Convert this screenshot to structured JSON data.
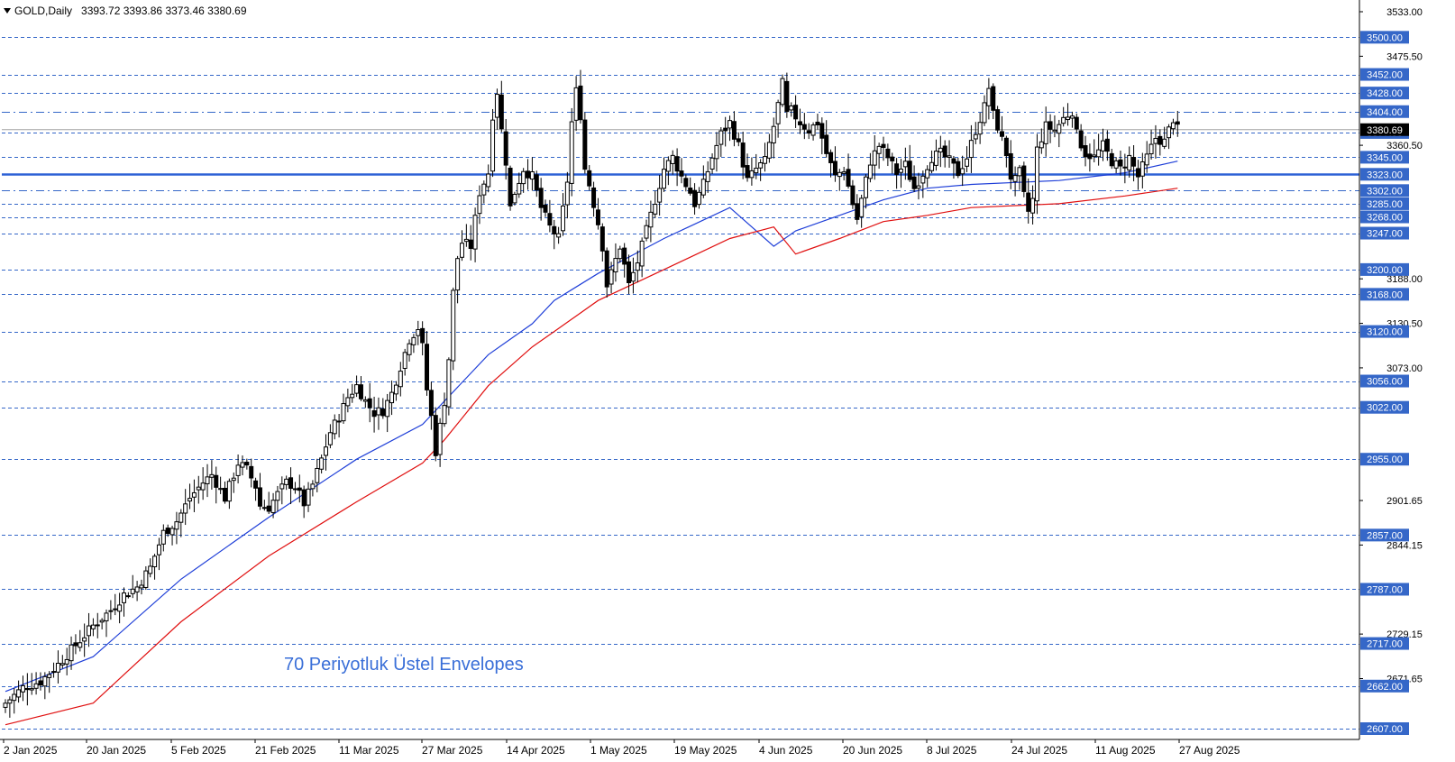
{
  "header": {
    "symbol": "GOLD,Daily",
    "values": "3393.72 3393.86 3373.46 3380.69"
  },
  "colors": {
    "bg": "#ffffff",
    "candle": "#000000",
    "blue_line": "#1f3fd8",
    "red_line": "#e01010",
    "level_box": "#3567c8",
    "level_text": "#ffffff",
    "grid_dash": "#3567c8",
    "support_line": "#2f62d6",
    "annotation": "#3a6fd8"
  },
  "chart_data": {
    "type": "candlestick",
    "title": "GOLD,Daily",
    "annotation": "70 Periyotluk Üstel Envelopes",
    "ylim": [
      2590,
      3535
    ],
    "x_ticks": [
      "2 Jan 2025",
      "20 Jan 2025",
      "5 Feb 2025",
      "21 Feb 2025",
      "11 Mar 2025",
      "27 Mar 2025",
      "14 Apr 2025",
      "1 May 2025",
      "19 May 2025",
      "4 Jun 2025",
      "20 Jun 2025",
      "8 Jul 2025",
      "24 Jul 2025",
      "11 Aug 2025",
      "27 Aug 2025"
    ],
    "y_ticks": [
      {
        "value": 3533.0,
        "label": "3533.00"
      },
      {
        "value": 3475.5,
        "label": "3475.50"
      },
      {
        "value": 3360.5,
        "label": "3360.50"
      },
      {
        "value": 3188.0,
        "label": "3188.00"
      },
      {
        "value": 3130.5,
        "label": "3130.50"
      },
      {
        "value": 3073.0,
        "label": "3073.00"
      },
      {
        "value": 2901.65,
        "label": "2901.65"
      },
      {
        "value": 2844.15,
        "label": "2844.15"
      },
      {
        "value": 2729.15,
        "label": "2729.15"
      },
      {
        "value": 2671.65,
        "label": "2671.65"
      }
    ],
    "levels": [
      {
        "value": 3500.0,
        "label": "3500.00",
        "style": "dashed"
      },
      {
        "value": 3452.0,
        "label": "3452.00",
        "style": "dashed"
      },
      {
        "value": 3428.0,
        "label": "3428.00",
        "style": "dashed"
      },
      {
        "value": 3404.0,
        "label": "3404.00",
        "style": "dashdot"
      },
      {
        "value": 3377.0,
        "label": "3377.00",
        "style": "dashed"
      },
      {
        "value": 3345.0,
        "label": "3345.00",
        "style": "dashed"
      },
      {
        "value": 3323.0,
        "label": "3323.00",
        "style": "solid"
      },
      {
        "value": 3302.0,
        "label": "3302.00",
        "style": "dashdot"
      },
      {
        "value": 3285.0,
        "label": "3285.00",
        "style": "dashed"
      },
      {
        "value": 3268.0,
        "label": "3268.00",
        "style": "dashed"
      },
      {
        "value": 3247.0,
        "label": "3247.00",
        "style": "dashed"
      },
      {
        "value": 3200.0,
        "label": "3200.00",
        "style": "dashed"
      },
      {
        "value": 3168.0,
        "label": "3168.00",
        "style": "dashed"
      },
      {
        "value": 3120.0,
        "label": "3120.00",
        "style": "dashed"
      },
      {
        "value": 3056.0,
        "label": "3056.00",
        "style": "dashed"
      },
      {
        "value": 3022.0,
        "label": "3022.00",
        "style": "dashed"
      },
      {
        "value": 2955.0,
        "label": "2955.00",
        "style": "dashed"
      },
      {
        "value": 2857.0,
        "label": "2857.00",
        "style": "dashed"
      },
      {
        "value": 2787.0,
        "label": "2787.00",
        "style": "dashed"
      },
      {
        "value": 2717.0,
        "label": "2717.00",
        "style": "dashed"
      },
      {
        "value": 2662.0,
        "label": "2662.00",
        "style": "dashed"
      },
      {
        "value": 2607.0,
        "label": "2607.00",
        "style": "dashed"
      }
    ],
    "current_price": 3380.69,
    "close_path": [
      [
        0,
        2640
      ],
      [
        4,
        2660
      ],
      [
        8,
        2668
      ],
      [
        12,
        2690
      ],
      [
        16,
        2715
      ],
      [
        20,
        2740
      ],
      [
        24,
        2760
      ],
      [
        27,
        2780
      ],
      [
        30,
        2790
      ],
      [
        33,
        2815
      ],
      [
        36,
        2860
      ],
      [
        39,
        2875
      ],
      [
        42,
        2905
      ],
      [
        45,
        2925
      ],
      [
        47,
        2935
      ],
      [
        50,
        2905
      ],
      [
        53,
        2950
      ],
      [
        55,
        2942
      ],
      [
        57,
        2920
      ],
      [
        58,
        2895
      ],
      [
        60,
        2893
      ],
      [
        62,
        2910
      ],
      [
        64,
        2925
      ],
      [
        66,
        2920
      ],
      [
        68,
        2898
      ],
      [
        70,
        2922
      ],
      [
        72,
        2955
      ],
      [
        74,
        2990
      ],
      [
        76,
        3010
      ],
      [
        78,
        3035
      ],
      [
        80,
        3050
      ],
      [
        82,
        3030
      ],
      [
        84,
        3015
      ],
      [
        86,
        3018
      ],
      [
        88,
        3040
      ],
      [
        90,
        3075
      ],
      [
        92,
        3110
      ],
      [
        94,
        3125
      ],
      [
        95,
        3100
      ],
      [
        96,
        3045
      ],
      [
        97,
        3010
      ],
      [
        98,
        2965
      ],
      [
        100,
        3030
      ],
      [
        101,
        3085
      ],
      [
        102,
        3170
      ],
      [
        103,
        3215
      ],
      [
        104,
        3235
      ],
      [
        106,
        3230
      ],
      [
        108,
        3300
      ],
      [
        110,
        3325
      ],
      [
        111,
        3400
      ],
      [
        112,
        3430
      ],
      [
        113,
        3380
      ],
      [
        114,
        3340
      ],
      [
        115,
        3280
      ],
      [
        116,
        3300
      ],
      [
        118,
        3330
      ],
      [
        120,
        3320
      ],
      [
        122,
        3280
      ],
      [
        124,
        3255
      ],
      [
        126,
        3240
      ],
      [
        128,
        3315
      ],
      [
        129,
        3390
      ],
      [
        130,
        3430
      ],
      [
        131,
        3400
      ],
      [
        132,
        3330
      ],
      [
        133,
        3310
      ],
      [
        135,
        3260
      ],
      [
        136,
        3230
      ],
      [
        137,
        3180
      ],
      [
        138,
        3195
      ],
      [
        140,
        3230
      ],
      [
        142,
        3180
      ],
      [
        144,
        3210
      ],
      [
        146,
        3250
      ],
      [
        148,
        3290
      ],
      [
        150,
        3330
      ],
      [
        152,
        3345
      ],
      [
        154,
        3320
      ],
      [
        156,
        3300
      ],
      [
        157,
        3285
      ],
      [
        159,
        3310
      ],
      [
        161,
        3345
      ],
      [
        163,
        3375
      ],
      [
        165,
        3390
      ],
      [
        167,
        3360
      ],
      [
        169,
        3315
      ],
      [
        171,
        3330
      ],
      [
        173,
        3340
      ],
      [
        175,
        3385
      ],
      [
        177,
        3440
      ],
      [
        178,
        3400
      ],
      [
        179,
        3405
      ],
      [
        181,
        3390
      ],
      [
        183,
        3380
      ],
      [
        185,
        3390
      ],
      [
        187,
        3350
      ],
      [
        189,
        3320
      ],
      [
        191,
        3330
      ],
      [
        193,
        3285
      ],
      [
        194,
        3265
      ],
      [
        195,
        3290
      ],
      [
        197,
        3340
      ],
      [
        199,
        3360
      ],
      [
        201,
        3345
      ],
      [
        203,
        3325
      ],
      [
        205,
        3335
      ],
      [
        207,
        3305
      ],
      [
        209,
        3325
      ],
      [
        211,
        3345
      ],
      [
        213,
        3350
      ],
      [
        215,
        3340
      ],
      [
        217,
        3325
      ],
      [
        219,
        3345
      ],
      [
        221,
        3380
      ],
      [
        223,
        3410
      ],
      [
        224,
        3435
      ],
      [
        225,
        3400
      ],
      [
        226,
        3385
      ],
      [
        228,
        3350
      ],
      [
        229,
        3320
      ],
      [
        230,
        3315
      ],
      [
        231,
        3325
      ],
      [
        232,
        3295
      ],
      [
        233,
        3275
      ],
      [
        234,
        3290
      ],
      [
        235,
        3355
      ],
      [
        237,
        3385
      ],
      [
        239,
        3380
      ],
      [
        241,
        3395
      ],
      [
        243,
        3405
      ],
      [
        244,
        3375
      ],
      [
        246,
        3350
      ],
      [
        248,
        3345
      ],
      [
        250,
        3360
      ],
      [
        252,
        3340
      ],
      [
        254,
        3330
      ],
      [
        256,
        3345
      ],
      [
        258,
        3320
      ],
      [
        260,
        3345
      ],
      [
        262,
        3370
      ],
      [
        264,
        3365
      ],
      [
        266,
        3395
      ],
      [
        267,
        3381
      ]
    ],
    "series": [
      {
        "name": "upper",
        "color": "blue",
        "points": [
          [
            0,
            2655
          ],
          [
            20,
            2700
          ],
          [
            40,
            2800
          ],
          [
            60,
            2880
          ],
          [
            80,
            2955
          ],
          [
            95,
            3000
          ],
          [
            100,
            3030
          ],
          [
            110,
            3090
          ],
          [
            120,
            3130
          ],
          [
            125,
            3160
          ],
          [
            135,
            3195
          ],
          [
            150,
            3240
          ],
          [
            165,
            3280
          ],
          [
            175,
            3230
          ],
          [
            180,
            3250
          ],
          [
            190,
            3270
          ],
          [
            200,
            3290
          ],
          [
            210,
            3305
          ],
          [
            220,
            3310
          ],
          [
            240,
            3315
          ],
          [
            255,
            3325
          ],
          [
            267,
            3340
          ]
        ]
      },
      {
        "name": "lower",
        "color": "red",
        "points": [
          [
            0,
            2612
          ],
          [
            20,
            2640
          ],
          [
            40,
            2745
          ],
          [
            60,
            2830
          ],
          [
            80,
            2900
          ],
          [
            95,
            2950
          ],
          [
            100,
            2980
          ],
          [
            110,
            3050
          ],
          [
            120,
            3100
          ],
          [
            125,
            3120
          ],
          [
            135,
            3160
          ],
          [
            150,
            3200
          ],
          [
            165,
            3240
          ],
          [
            175,
            3255
          ],
          [
            180,
            3220
          ],
          [
            190,
            3240
          ],
          [
            200,
            3262
          ],
          [
            210,
            3270
          ],
          [
            220,
            3280
          ],
          [
            240,
            3285
          ],
          [
            255,
            3295
          ],
          [
            267,
            3305
          ]
        ]
      }
    ]
  }
}
